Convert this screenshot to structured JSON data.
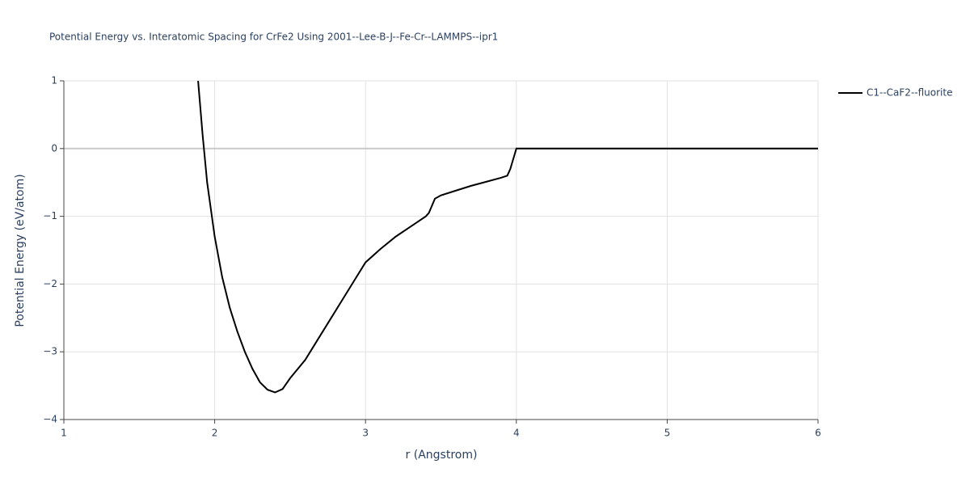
{
  "chart_data": {
    "type": "line",
    "title": "Potential Energy vs. Interatomic Spacing for CrFe2 Using 2001--Lee-B-J--Fe-Cr--LAMMPS--ipr1",
    "xlabel": "r (Angstrom)",
    "ylabel": "Potential Energy (eV/atom)",
    "xlim": [
      1,
      6
    ],
    "xticks": [
      1,
      2,
      3,
      4,
      5,
      6
    ],
    "ylim": [
      -4,
      1
    ],
    "yticks": [
      {
        "value": -4,
        "label": "−4"
      },
      {
        "value": -3,
        "label": "−3"
      },
      {
        "value": -2,
        "label": "−2"
      },
      {
        "value": -1,
        "label": "−1"
      },
      0,
      1
    ],
    "grid": true,
    "legend": "top-right",
    "series": [
      {
        "name": "C1--CaF2--fluorite",
        "color": "#000000",
        "x": [
          1.89,
          1.92,
          1.95,
          2.0,
          2.05,
          2.1,
          2.15,
          2.2,
          2.25,
          2.3,
          2.35,
          2.4,
          2.45,
          2.5,
          2.6,
          2.7,
          2.8,
          2.9,
          3.0,
          3.1,
          3.2,
          3.3,
          3.4,
          3.42,
          3.46,
          3.5,
          3.6,
          3.7,
          3.8,
          3.9,
          3.94,
          3.96,
          4.0,
          6.0
        ],
        "values": [
          1.0,
          0.2,
          -0.5,
          -1.3,
          -1.9,
          -2.35,
          -2.7,
          -3.0,
          -3.25,
          -3.45,
          -3.56,
          -3.6,
          -3.55,
          -3.39,
          -3.12,
          -2.76,
          -2.4,
          -2.04,
          -1.68,
          -1.48,
          -1.3,
          -1.15,
          -1.0,
          -0.95,
          -0.74,
          -0.69,
          -0.62,
          -0.55,
          -0.49,
          -0.43,
          -0.4,
          -0.3,
          0,
          0
        ]
      }
    ]
  }
}
